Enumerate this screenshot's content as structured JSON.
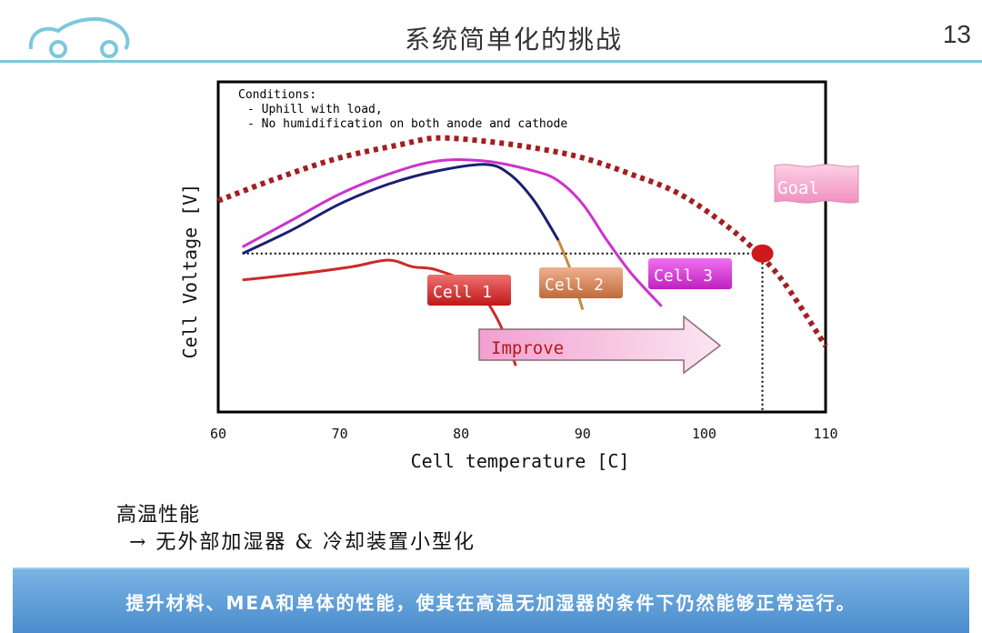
{
  "header": {
    "title": "系统简单化的挑战",
    "page_number": "13"
  },
  "chart_data": {
    "type": "line",
    "xlabel": "Cell temperature [C]",
    "ylabel": "Cell Voltage [V]",
    "xlim": [
      60,
      110
    ],
    "x_ticks": [
      "60",
      "70",
      "80",
      "90",
      "100",
      "110"
    ],
    "grid": false,
    "conditions_text": [
      "Conditions:",
      "- Uphill with load,",
      "- No humidification on both anode and cathode"
    ],
    "series": [
      {
        "name": "Cell 1",
        "color": "#cc2a2a",
        "x": [
          62,
          67,
          71,
          74,
          76,
          78,
          81,
          83,
          84.5
        ],
        "y": [
          0.4,
          0.42,
          0.44,
          0.46,
          0.44,
          0.43,
          0.38,
          0.28,
          0.14
        ]
      },
      {
        "name": "Cell 2",
        "color": "#1a1f6e",
        "x": [
          62,
          66,
          70,
          74,
          78,
          82,
          84,
          86,
          88
        ],
        "y": [
          0.48,
          0.55,
          0.63,
          0.69,
          0.73,
          0.75,
          0.72,
          0.64,
          0.52
        ]
      },
      {
        "name": "Cell 2 (end)",
        "color": "#c88a3a",
        "x": [
          88,
          89,
          90
        ],
        "y": [
          0.52,
          0.43,
          0.31
        ]
      },
      {
        "name": "Cell 3",
        "color": "#cc33cc",
        "x": [
          62,
          66,
          70,
          74,
          78,
          82,
          86,
          88,
          90,
          92,
          94,
          96.5
        ],
        "y": [
          0.5,
          0.58,
          0.66,
          0.72,
          0.76,
          0.76,
          0.73,
          0.7,
          0.63,
          0.52,
          0.42,
          0.32
        ]
      }
    ],
    "goal_envelope": {
      "color": "#a31e22",
      "x": [
        60,
        65,
        70,
        75,
        78,
        82,
        86,
        90,
        94,
        98,
        102,
        105,
        107,
        110
      ],
      "y": [
        0.64,
        0.71,
        0.77,
        0.81,
        0.83,
        0.82,
        0.8,
        0.77,
        0.72,
        0.66,
        0.56,
        0.46,
        0.37,
        0.2
      ]
    },
    "reference_level_y": 0.48,
    "goal_point": {
      "x": 104.8,
      "y": 0.48,
      "color": "#cc1a1a"
    },
    "labels": {
      "cell1": "Cell 1",
      "cell2": "Cell 2",
      "cell3": "Cell 3",
      "improve": "Improve",
      "goal": "Goal"
    }
  },
  "bullets": {
    "line1": "高温性能",
    "line2": "→ 无外部加湿器 & 冷却装置小型化"
  },
  "banner": {
    "text": "提升材料、MEA和单体的性能，使其在高温无加湿器的条件下仍然能够正常运行。"
  }
}
